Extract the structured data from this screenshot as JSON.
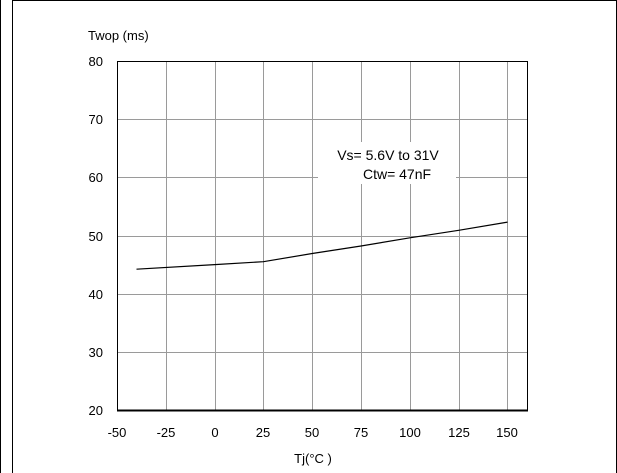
{
  "chart_data": {
    "type": "line",
    "title": "",
    "ylabel": "Twop (ms)",
    "xlabel": "Tj(°C )",
    "xlim": [
      -50,
      160
    ],
    "ylim": [
      20,
      80
    ],
    "xticks": [
      -50,
      -25,
      0,
      25,
      50,
      75,
      100,
      125,
      150
    ],
    "yticks": [
      20,
      30,
      40,
      50,
      60,
      70,
      80
    ],
    "grid": true,
    "annotation": [
      "Vs= 5.6V to 31V",
      "Ctw= 47nF"
    ],
    "series": [
      {
        "x": [
          -40,
          0,
          25,
          50,
          75,
          100,
          125,
          150
        ],
        "y": [
          44.2,
          45.0,
          45.5,
          46.9,
          48.2,
          49.6,
          50.9,
          52.3
        ],
        "color": "#000000"
      }
    ]
  }
}
